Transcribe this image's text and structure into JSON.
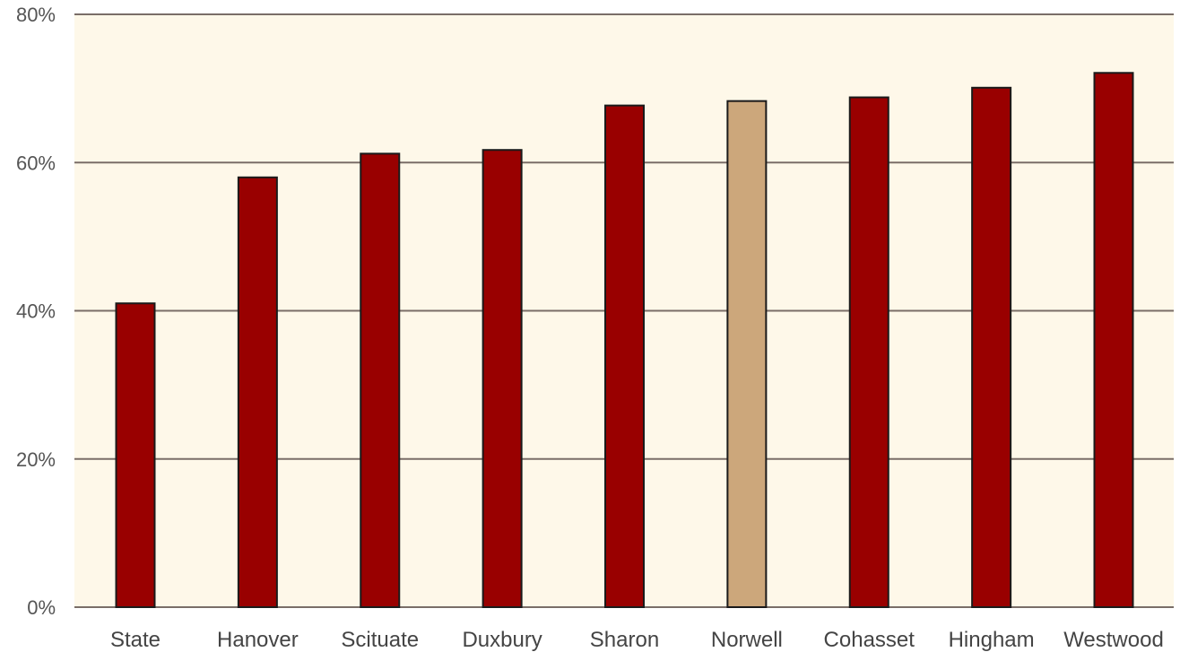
{
  "chart_data": {
    "type": "bar",
    "title": "",
    "xlabel": "",
    "ylabel": "",
    "categories": [
      "State",
      "Hanover",
      "Scituate",
      "Duxbury",
      "Sharon",
      "Norwell",
      "Cohasset",
      "Hingham",
      "Westwood"
    ],
    "values": [
      41,
      58,
      61.2,
      61.7,
      67.7,
      68.3,
      68.8,
      70.1,
      72.1
    ],
    "ylim": [
      0,
      80
    ],
    "yticks": [
      0,
      20,
      40,
      60,
      80
    ],
    "ytick_labels": [
      "0%",
      "20%",
      "40%",
      "60%",
      "80%"
    ],
    "grid": true,
    "legend": "none",
    "colors": {
      "bar": "#990000",
      "highlight": "#cca77b",
      "highlight_category": "Norwell",
      "plot_background": "#fef8e9",
      "gridline": "#7a6e68",
      "bar_outline": "#1a1a1a"
    }
  }
}
